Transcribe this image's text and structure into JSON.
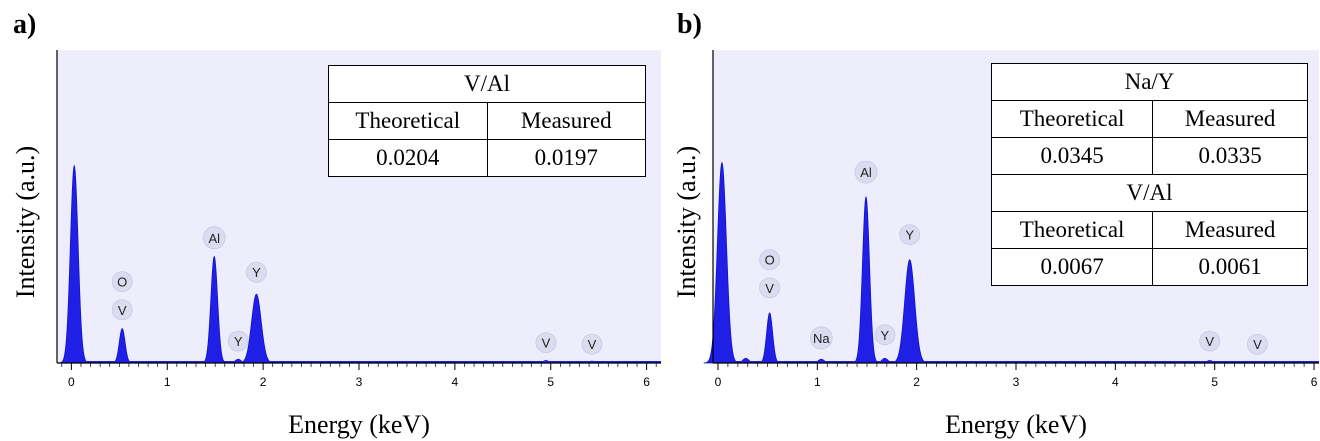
{
  "panels": [
    {
      "label": "a)",
      "xlabel": "Energy (keV)",
      "ylabel": "Intensity (a.u.)",
      "tables": [
        {
          "title": "V/Al",
          "headers": [
            "Theoretical",
            "Measured"
          ],
          "values": [
            "0.0204",
            "0.0197"
          ]
        }
      ]
    },
    {
      "label": "b)",
      "xlabel": "Energy (keV)",
      "ylabel": "Intensity (a.u.)",
      "tables": [
        {
          "title": "Na/Y",
          "headers": [
            "Theoretical",
            "Measured"
          ],
          "values": [
            "0.0345",
            "0.0335"
          ]
        },
        {
          "title": "V/Al",
          "headers": [
            "Theoretical",
            "Measured"
          ],
          "values": [
            "0.0067",
            "0.0061"
          ]
        }
      ]
    }
  ],
  "chart_data": [
    {
      "type": "area",
      "xlabel": "Energy (keV)",
      "ylabel": "Intensity (a.u.)",
      "xlim": [
        -0.15,
        6.15
      ],
      "ylim": [
        0,
        100
      ],
      "x_ticks": [
        0,
        1,
        2,
        3,
        4,
        5,
        6
      ],
      "grid": false,
      "color": "#1f1fe6",
      "background": "#ededfc",
      "peaks": [
        {
          "x": 0.03,
          "y": 63,
          "w": 0.04
        },
        {
          "x": 0.53,
          "y": 11,
          "w": 0.03
        },
        {
          "x": 1.49,
          "y": 34,
          "w": 0.035
        },
        {
          "x": 1.93,
          "y": 22,
          "w": 0.05
        },
        {
          "x": 1.74,
          "y": 1.2,
          "w": 0.03
        },
        {
          "x": 4.95,
          "y": 0.8,
          "w": 0.03
        },
        {
          "x": 5.43,
          "y": 0.6,
          "w": 0.03
        }
      ],
      "peak_labels": [
        {
          "text": "O",
          "x": 0.53,
          "y": 26
        },
        {
          "text": "V",
          "x": 0.53,
          "y": 17
        },
        {
          "text": "Al",
          "x": 1.49,
          "y": 40
        },
        {
          "text": "Y",
          "x": 1.93,
          "y": 29
        },
        {
          "text": "Y",
          "x": 1.74,
          "y": 7
        },
        {
          "text": "V",
          "x": 4.95,
          "y": 6.5
        },
        {
          "text": "V",
          "x": 5.43,
          "y": 6
        }
      ]
    },
    {
      "type": "area",
      "xlabel": "Energy (keV)",
      "ylabel": "Intensity (a.u.)",
      "xlim": [
        -0.05,
        6.05
      ],
      "ylim": [
        0,
        100
      ],
      "x_ticks": [
        0,
        1,
        2,
        3,
        4,
        5,
        6
      ],
      "grid": false,
      "color": "#1f1fe6",
      "background": "#ededfc",
      "peaks": [
        {
          "x": 0.04,
          "y": 64,
          "w": 0.045
        },
        {
          "x": 0.28,
          "y": 1.5,
          "w": 0.03
        },
        {
          "x": 0.52,
          "y": 16,
          "w": 0.03
        },
        {
          "x": 1.04,
          "y": 1.2,
          "w": 0.03
        },
        {
          "x": 1.49,
          "y": 53,
          "w": 0.035
        },
        {
          "x": 1.93,
          "y": 33,
          "w": 0.05
        },
        {
          "x": 1.68,
          "y": 1.5,
          "w": 0.03
        },
        {
          "x": 4.95,
          "y": 0.8,
          "w": 0.03
        },
        {
          "x": 5.43,
          "y": 0.5,
          "w": 0.03
        }
      ],
      "peak_labels": [
        {
          "text": "O",
          "x": 0.52,
          "y": 33
        },
        {
          "text": "V",
          "x": 0.52,
          "y": 24
        },
        {
          "text": "Na",
          "x": 1.04,
          "y": 8
        },
        {
          "text": "Al",
          "x": 1.49,
          "y": 61
        },
        {
          "text": "Y",
          "x": 1.93,
          "y": 41
        },
        {
          "text": "Y",
          "x": 1.68,
          "y": 9
        },
        {
          "text": "V",
          "x": 4.95,
          "y": 7
        },
        {
          "text": "V",
          "x": 5.43,
          "y": 6
        }
      ]
    }
  ]
}
